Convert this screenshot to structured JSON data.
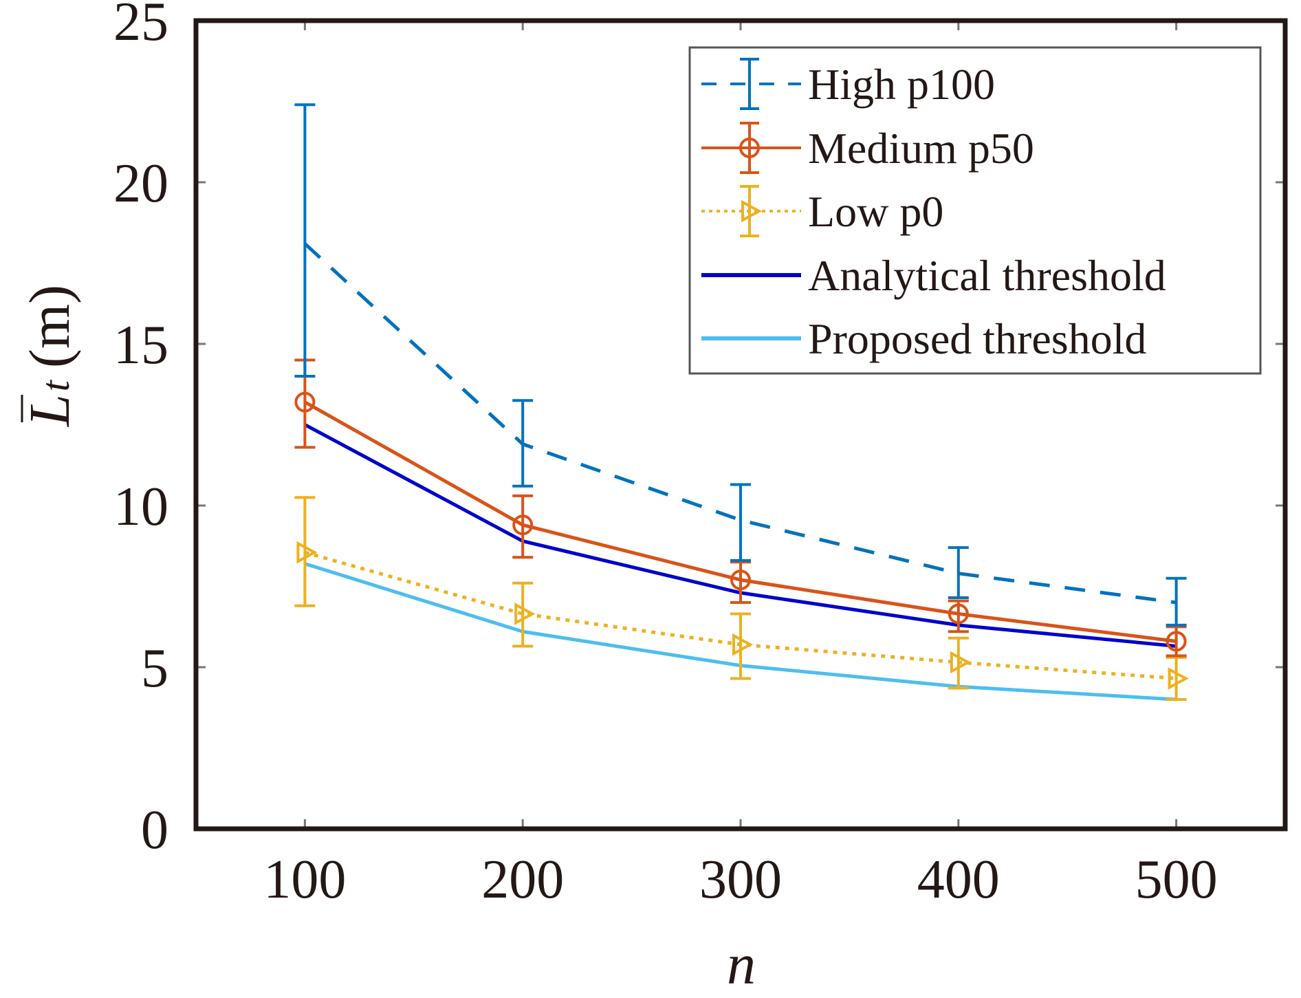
{
  "chart_data": {
    "type": "line",
    "title": "",
    "xlabel": "n",
    "ylabel": {
      "symbol": "L",
      "subscript": "t",
      "unit": "(m)",
      "overline": true
    },
    "xlim": [
      50,
      550
    ],
    "ylim": [
      0,
      25
    ],
    "xticks": [
      100,
      200,
      300,
      400,
      500
    ],
    "yticks": [
      0,
      5,
      10,
      15,
      20,
      25
    ],
    "grid": false,
    "legend_position": "top-right",
    "x": [
      100,
      200,
      300,
      400,
      500
    ],
    "series": [
      {
        "name": "High p100",
        "color": "#0072BD",
        "line_style": "dashed",
        "marker": "none",
        "values": [
          18.1,
          11.9,
          9.55,
          7.9,
          7.0
        ],
        "error_upper": [
          22.4,
          13.25,
          10.65,
          8.7,
          7.75
        ],
        "error_lower": [
          14.0,
          10.6,
          8.3,
          7.15,
          6.3
        ]
      },
      {
        "name": "Medium p50",
        "color": "#D95319",
        "line_style": "solid",
        "marker": "circle",
        "values": [
          13.2,
          9.4,
          7.7,
          6.65,
          5.8
        ],
        "error_upper": [
          14.5,
          10.3,
          8.25,
          7.05,
          6.25
        ],
        "error_lower": [
          11.8,
          8.4,
          7.0,
          6.1,
          5.35
        ]
      },
      {
        "name": "Low p0",
        "color": "#EDB120",
        "line_style": "dotted",
        "marker": "triangle-right",
        "values": [
          8.55,
          6.65,
          5.7,
          5.15,
          4.65
        ],
        "error_upper": [
          10.25,
          7.6,
          6.65,
          5.9,
          5.3
        ],
        "error_lower": [
          6.9,
          5.65,
          4.65,
          4.35,
          4.0
        ]
      },
      {
        "name": "Analytical threshold",
        "color": "#0000CC",
        "line_style": "solid",
        "marker": "none",
        "values": [
          12.5,
          8.9,
          7.3,
          6.3,
          5.65
        ]
      },
      {
        "name": "Proposed threshold",
        "color": "#4DBEEE",
        "line_style": "solid",
        "marker": "none",
        "values": [
          8.2,
          6.1,
          5.05,
          4.4,
          4.0
        ]
      }
    ]
  }
}
